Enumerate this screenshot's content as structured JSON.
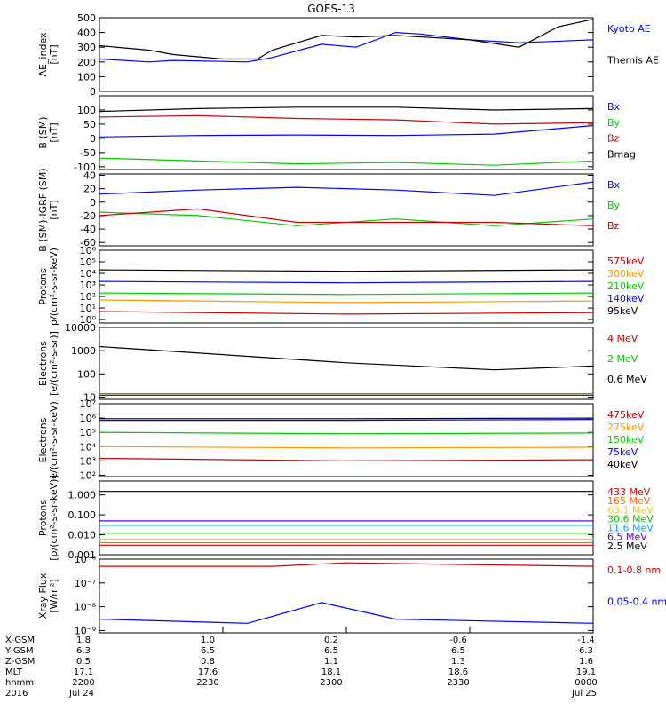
{
  "title": "GOES-13",
  "chart_data": [
    {
      "type": "line",
      "ylabel": "AE_index\n[nT]",
      "ylim": [
        0,
        500
      ],
      "log": false,
      "yticks": [
        0,
        100,
        200,
        300,
        400,
        500
      ],
      "ytick_labels": [
        "0",
        "100",
        "200",
        "300",
        "400",
        "500"
      ],
      "series": [
        {
          "name": "Kyoto AE",
          "color": "#0000ff",
          "x": [
            0,
            0.1,
            0.15,
            0.3,
            0.35,
            0.45,
            0.52,
            0.6,
            0.65,
            0.75,
            0.85,
            1
          ],
          "y": [
            220,
            200,
            210,
            200,
            230,
            320,
            300,
            400,
            390,
            350,
            330,
            350
          ]
        },
        {
          "name": "Themis AE",
          "color": "#000000",
          "x": [
            0,
            0.1,
            0.15,
            0.25,
            0.32,
            0.35,
            0.45,
            0.52,
            0.6,
            0.75,
            0.85,
            0.93,
            1
          ],
          "y": [
            310,
            280,
            250,
            220,
            220,
            280,
            380,
            370,
            380,
            350,
            300,
            440,
            490
          ]
        }
      ]
    },
    {
      "type": "line",
      "ylabel": "B (SM)\n[nT]",
      "ylim": [
        -110,
        150
      ],
      "log": false,
      "yticks": [
        -100,
        -50,
        0,
        50,
        100
      ],
      "ytick_labels": [
        "-100",
        "-50",
        "0",
        "50",
        "100"
      ],
      "series": [
        {
          "name": "Bx",
          "color": "#0000ff",
          "x": [
            0,
            0.2,
            0.4,
            0.6,
            0.8,
            1
          ],
          "y": [
            5,
            10,
            12,
            10,
            15,
            45
          ]
        },
        {
          "name": "By",
          "color": "#00cc00",
          "x": [
            0,
            0.2,
            0.4,
            0.6,
            0.8,
            1
          ],
          "y": [
            -70,
            -80,
            -90,
            -85,
            -95,
            -80
          ]
        },
        {
          "name": "Bz",
          "color": "#cc0000",
          "x": [
            0,
            0.2,
            0.4,
            0.6,
            0.8,
            1
          ],
          "y": [
            75,
            80,
            70,
            65,
            50,
            55
          ]
        },
        {
          "name": "Bmag",
          "color": "#000000",
          "x": [
            0,
            0.2,
            0.4,
            0.6,
            0.8,
            1
          ],
          "y": [
            95,
            105,
            110,
            110,
            100,
            105
          ]
        }
      ]
    },
    {
      "type": "line",
      "ylabel": "B (SM)-IGRF (SM)\n[nT]",
      "ylim": [
        -65,
        42
      ],
      "log": false,
      "yticks": [
        -60,
        -40,
        -20,
        0,
        20,
        40
      ],
      "ytick_labels": [
        "-60",
        "-40",
        "-20",
        "0",
        "20",
        "40"
      ],
      "series": [
        {
          "name": "Bx",
          "color": "#0000ff",
          "x": [
            0,
            0.2,
            0.4,
            0.6,
            0.8,
            1
          ],
          "y": [
            12,
            18,
            22,
            18,
            10,
            30
          ]
        },
        {
          "name": "By",
          "color": "#00cc00",
          "x": [
            0,
            0.2,
            0.4,
            0.6,
            0.8,
            1
          ],
          "y": [
            -15,
            -20,
            -35,
            -25,
            -35,
            -25
          ]
        },
        {
          "name": "Bz",
          "color": "#cc0000",
          "x": [
            0,
            0.2,
            0.4,
            0.6,
            0.8,
            1
          ],
          "y": [
            -20,
            -10,
            -30,
            -30,
            -30,
            -35
          ]
        }
      ]
    },
    {
      "type": "line",
      "ylabel": "Protons\np/(cm²-s-sr-keV)",
      "ylim": [
        0.5,
        1000000
      ],
      "log": true,
      "yticks": [
        1,
        10,
        100,
        1000,
        10000,
        100000,
        1000000
      ],
      "ytick_labels": [
        "10⁰",
        "10¹",
        "10²",
        "10³",
        "10⁴",
        "10⁵",
        "10⁶"
      ],
      "series": [
        {
          "name": "575keV",
          "color": "#cc0000",
          "x": [
            0,
            0.5,
            1
          ],
          "y": [
            5,
            3,
            4
          ]
        },
        {
          "name": "300keV",
          "color": "#ff9900",
          "x": [
            0,
            0.5,
            1
          ],
          "y": [
            50,
            30,
            40
          ]
        },
        {
          "name": "210keV",
          "color": "#00cc00",
          "x": [
            0,
            0.5,
            1
          ],
          "y": [
            200,
            150,
            200
          ]
        },
        {
          "name": "140keV",
          "color": "#0000ff",
          "x": [
            0,
            0.5,
            1
          ],
          "y": [
            2000,
            1500,
            2000
          ]
        },
        {
          "name": "95keV",
          "color": "#000000",
          "x": [
            0,
            0.5,
            1
          ],
          "y": [
            20000,
            15000,
            20000
          ]
        }
      ]
    },
    {
      "type": "line",
      "ylabel": "Electrons\n[e/(cm²-s-sr)]",
      "ylim": [
        8,
        10000
      ],
      "log": true,
      "yticks": [
        10,
        100,
        1000,
        10000
      ],
      "ytick_labels": [
        "10",
        "100",
        "1000",
        "10000"
      ],
      "series": [
        {
          "name": "4 MeV",
          "color": "#cc0000",
          "x": [
            0,
            1
          ],
          "y": [
            12,
            12
          ]
        },
        {
          "name": "2 MeV",
          "color": "#00cc00",
          "x": [
            0,
            1
          ],
          "y": [
            14,
            14
          ]
        },
        {
          "name": "0.6 MeV",
          "color": "#000000",
          "x": [
            0,
            0.5,
            0.8,
            1
          ],
          "y": [
            1500,
            300,
            150,
            220
          ]
        }
      ]
    },
    {
      "type": "line",
      "ylabel": "Electrons\ne/(cm²-s-sr-keV)",
      "ylim": [
        80,
        10000000
      ],
      "log": true,
      "yticks": [
        100,
        1000,
        10000,
        100000,
        1000000,
        10000000
      ],
      "ytick_labels": [
        "10²",
        "10³",
        "10⁴",
        "10⁵",
        "10⁶",
        "10⁷"
      ],
      "series": [
        {
          "name": "475keV",
          "color": "#cc0000",
          "x": [
            0,
            0.5,
            1
          ],
          "y": [
            1500,
            1000,
            1200
          ]
        },
        {
          "name": "275keV",
          "color": "#ff9900",
          "x": [
            0,
            0.5,
            1
          ],
          "y": [
            10000,
            8000,
            9000
          ]
        },
        {
          "name": "150keV",
          "color": "#00cc00",
          "x": [
            0,
            0.5,
            1
          ],
          "y": [
            100000,
            80000,
            90000
          ]
        },
        {
          "name": "75keV",
          "color": "#0000ff",
          "x": [
            0,
            0.5,
            1
          ],
          "y": [
            700000,
            700000,
            800000
          ]
        },
        {
          "name": "40keV",
          "color": "#000000",
          "x": [
            0,
            0.5,
            1
          ],
          "y": [
            900000,
            900000,
            1000000
          ]
        }
      ]
    },
    {
      "type": "line",
      "ylabel": "Protons\n[p/(cm²-s-sr-keV)]",
      "ylim": [
        0.001,
        5
      ],
      "log": true,
      "yticks": [
        0.001,
        0.01,
        0.1,
        1
      ],
      "ytick_labels": [
        "0.001",
        "0.010",
        "0.100",
        "1.000"
      ],
      "series": [
        {
          "name": "433 MeV",
          "color": "#cc0000",
          "x": [
            0,
            1
          ],
          "y": [
            0.003,
            0.003
          ]
        },
        {
          "name": "165 MeV",
          "color": "#ff6600",
          "x": [
            0,
            1
          ],
          "y": [
            0.004,
            0.004
          ]
        },
        {
          "name": "63.1 MeV",
          "color": "#ffcc00",
          "x": [
            0,
            1
          ],
          "y": [
            0.006,
            0.006
          ]
        },
        {
          "name": "30.6 MeV",
          "color": "#00cc00",
          "x": [
            0,
            1
          ],
          "y": [
            0.012,
            0.012
          ]
        },
        {
          "name": "11.6 MeV",
          "color": "#00aaff",
          "x": [
            0,
            1
          ],
          "y": [
            0.03,
            0.03
          ]
        },
        {
          "name": "6.5 MeV",
          "color": "#6600cc",
          "x": [
            0,
            1
          ],
          "y": [
            0.05,
            0.05
          ]
        },
        {
          "name": "2.5 MeV",
          "color": "#000000",
          "x": [
            0,
            1
          ],
          "y": [
            1.5,
            1.5
          ]
        }
      ]
    },
    {
      "type": "line",
      "ylabel": "Xray Flux\n[W/m²]",
      "ylim": [
        8e-10,
        1e-06
      ],
      "log": true,
      "yticks": [
        1e-09,
        1e-08,
        1e-07,
        1e-06
      ],
      "ytick_labels": [
        "10⁻⁹",
        "10⁻⁸",
        "10⁻⁷",
        "10⁻⁶"
      ],
      "series": [
        {
          "name": "0.1-0.8 nm",
          "color": "#cc0000",
          "x": [
            0,
            0.35,
            0.5,
            1
          ],
          "y": [
            5e-07,
            5e-07,
            7e-07,
            5e-07
          ]
        },
        {
          "name": "0.05-0.4 nm",
          "color": "#0000ff",
          "x": [
            0,
            0.3,
            0.45,
            0.6,
            1
          ],
          "y": [
            3e-09,
            2e-09,
            1.5e-08,
            3e-09,
            2e-09
          ]
        }
      ]
    }
  ],
  "footer": {
    "row_labels": [
      "X-GSM",
      "Y-GSM",
      "Z-GSM",
      "MLT",
      "hhmm",
      "2016"
    ],
    "columns": [
      [
        "1.8",
        "6.3",
        "0.5",
        "17.1",
        "2200",
        "Jul 24"
      ],
      [
        "1.0",
        "6.5",
        "0.8",
        "17.6",
        "2230",
        ""
      ],
      [
        "0.2",
        "6.5",
        "1.1",
        "18.1",
        "2300",
        ""
      ],
      [
        "-0.6",
        "6.5",
        "1.3",
        "18.6",
        "2330",
        ""
      ],
      [
        "-1.4",
        "6.3",
        "1.6",
        "19.1",
        "0000",
        "Jul 25"
      ]
    ]
  }
}
